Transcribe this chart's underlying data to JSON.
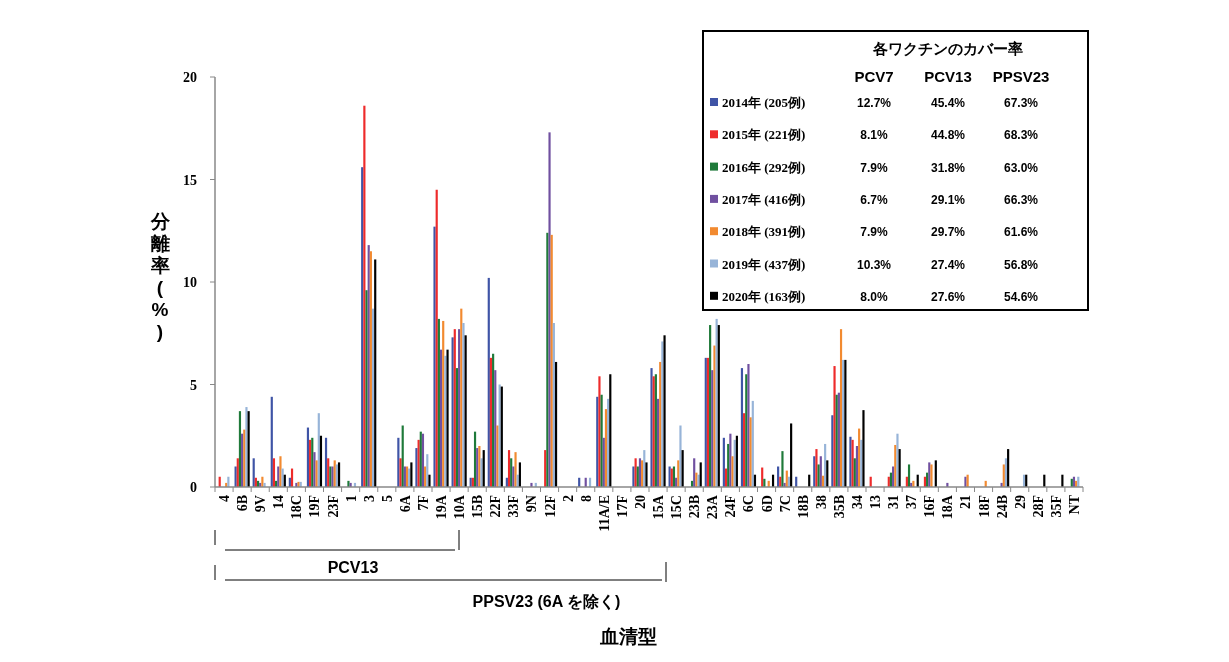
{
  "chart_data": {
    "type": "bar",
    "ylabel": "分離率 (%)",
    "xlabel": "血清型",
    "legend_title": "各ワクチンのカバー率",
    "legend": "top right",
    "categories": [
      "4",
      "6B",
      "9V",
      "14",
      "18C",
      "19F",
      "23F",
      "1",
      "3",
      "5",
      "6A",
      "7F",
      "19A",
      "10A",
      "15B",
      "22F",
      "33F",
      "9N",
      "12F",
      "2",
      "8",
      "11A/E",
      "17F",
      "20",
      "15A",
      "15C",
      "23B",
      "23A",
      "24F",
      "6C",
      "6D",
      "7C",
      "18B",
      "38",
      "35B",
      "34",
      "13",
      "31",
      "37",
      "16F",
      "18A",
      "21",
      "18F",
      "24B",
      "29",
      "28F",
      "35F",
      "NT"
    ],
    "ylim": [
      0,
      20
    ],
    "yticks": [
      0,
      5,
      10,
      15,
      20
    ],
    "series": [
      {
        "name": "2014年 (205例)",
        "color": "#3f54a6",
        "values": [
          0,
          1.0,
          1.4,
          4.4,
          0.45,
          2.9,
          2.4,
          0,
          15.6,
          0,
          2.4,
          1.9,
          12.7,
          7.3,
          0.45,
          10.2,
          0.45,
          0,
          0,
          0,
          0.45,
          4.4,
          0,
          1.0,
          5.8,
          1.0,
          0,
          6.3,
          2.4,
          5.8,
          0,
          1.0,
          0.5,
          1.5,
          3.5,
          2.45,
          0,
          0,
          0,
          0,
          0,
          0,
          0,
          0,
          0,
          0,
          0,
          0
        ]
      },
      {
        "name": "2015年 (221例)",
        "color": "#ee2b2b",
        "values": [
          0.5,
          1.4,
          0.45,
          1.4,
          0.9,
          2.3,
          1.4,
          0,
          18.6,
          0,
          1.4,
          2.3,
          14.5,
          7.7,
          0.45,
          6.3,
          1.8,
          0,
          1.8,
          0,
          0,
          5.4,
          0,
          1.4,
          5.4,
          0.9,
          0,
          6.3,
          0.9,
          3.6,
          0.95,
          0.5,
          0,
          1.85,
          5.9,
          2.3,
          0.5,
          0.5,
          0.5,
          0.5,
          0,
          0,
          0,
          0,
          0,
          0,
          0,
          0
        ]
      },
      {
        "name": "2016年 (292例)",
        "color": "#1f7a3a",
        "values": [
          0,
          3.7,
          0.3,
          0.3,
          0,
          2.4,
          1.0,
          0.3,
          9.6,
          0,
          3.0,
          2.7,
          8.2,
          5.8,
          2.7,
          6.5,
          1.4,
          0,
          12.4,
          0,
          0,
          4.5,
          0,
          1.0,
          5.5,
          1.0,
          0.3,
          7.9,
          2.1,
          5.5,
          0.4,
          1.75,
          0,
          1.1,
          4.5,
          1.4,
          0,
          0.7,
          1.1,
          0.7,
          0,
          0,
          0,
          0,
          0,
          0,
          0,
          0.4
        ]
      },
      {
        "name": "2017年 (416例)",
        "color": "#7050a0",
        "values": [
          0,
          2.6,
          0.2,
          1.0,
          0.2,
          1.7,
          1.0,
          0.2,
          11.8,
          0,
          1.0,
          2.6,
          6.7,
          7.7,
          1.9,
          5.7,
          1.0,
          0.2,
          17.3,
          0,
          0.45,
          2.4,
          0,
          1.4,
          4.3,
          0.45,
          1.4,
          5.7,
          2.6,
          6.0,
          0,
          0.2,
          0,
          1.5,
          4.6,
          2.0,
          0,
          1.0,
          0.2,
          1.2,
          0.2,
          0.5,
          0,
          0.2,
          0,
          0,
          0,
          0.5
        ]
      },
      {
        "name": "2018年 (391例)",
        "color": "#f28a30",
        "values": [
          0.2,
          2.8,
          0.5,
          1.5,
          0.25,
          1.3,
          1.3,
          0,
          11.5,
          0,
          1.0,
          1.0,
          8.1,
          8.7,
          2.0,
          3.0,
          1.7,
          0,
          12.3,
          0,
          0,
          3.8,
          0,
          1.3,
          6.1,
          1.3,
          0.7,
          6.9,
          1.5,
          3.4,
          0.3,
          0.8,
          0,
          0.55,
          7.7,
          2.85,
          0,
          2.05,
          0.3,
          1.1,
          0,
          0.6,
          0.3,
          1.1,
          0,
          0,
          0,
          0.3
        ]
      },
      {
        "name": "2019年 (437例)",
        "color": "#97b4d8",
        "values": [
          0.5,
          3.9,
          0.2,
          0.9,
          0.25,
          3.6,
          1.1,
          0.2,
          8.7,
          0,
          0.9,
          1.6,
          6.4,
          8.0,
          1.4,
          5.0,
          0.6,
          0.2,
          8.0,
          0,
          0.45,
          4.3,
          0,
          1.8,
          7.1,
          3.0,
          0.6,
          8.2,
          2.3,
          4.2,
          0,
          0.5,
          0,
          2.1,
          6.2,
          2.3,
          0,
          2.6,
          0,
          0,
          0,
          0,
          0,
          1.4,
          0.6,
          0,
          0,
          0.5
        ]
      },
      {
        "name": "2020年 (163例)",
        "color": "#000000",
        "values": [
          0,
          3.7,
          0,
          0.6,
          0,
          2.5,
          1.2,
          0,
          11.1,
          0,
          1.2,
          0.6,
          6.7,
          7.4,
          1.8,
          4.9,
          1.2,
          0,
          6.1,
          0,
          0,
          5.5,
          0,
          1.2,
          7.4,
          1.8,
          1.2,
          7.9,
          2.5,
          0.6,
          0.6,
          3.1,
          0.6,
          1.3,
          6.2,
          3.75,
          0,
          1.85,
          0.6,
          1.3,
          0,
          0,
          0,
          1.85,
          0.6,
          0.6,
          0.6,
          0
        ]
      }
    ],
    "annotations": [
      "PCV7",
      "PCV13",
      "PPSV23",
      "12.7%",
      "45.4%",
      "67.3%",
      "8.1%",
      "44.8%",
      "68.3%",
      "7.9%",
      "31.8%",
      "63.0%",
      "6.7%",
      "29.1%",
      "66.3%",
      "7.9%",
      "29.7%",
      "61.6%",
      "10.3%",
      "27.4%",
      "56.8%",
      "8.0%",
      "27.6%",
      "54.6%",
      "PCV13",
      "PPSV23 (6A を除く)"
    ]
  }
}
